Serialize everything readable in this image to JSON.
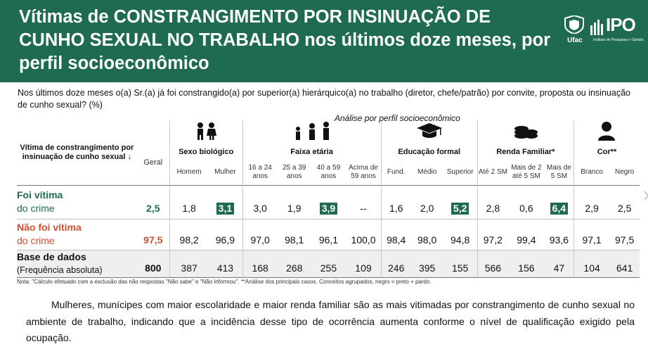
{
  "banner": {
    "title": "Vítimas de CONSTRANGIMENTO POR INSINUAÇÃO DE CUNHO SEXUAL NO TRABALHO nos últimos doze meses, por perfil socioeconômico",
    "logo_ufac": "Ufac",
    "logo_ipo": "IPO",
    "logo_ipo_sub": "Instituto de Pesquisas e Opinião",
    "bg_color": "#1f6b52"
  },
  "question": "Nos últimos doze meses o(a) Sr.(a) já foi constrangido(a) por superior(a) hierárquico(a) no trabalho (diretor, chefe/patrão) por convite, proposta ou insinuação de cunho sexual? (%)",
  "subtitle": "Análise por perfil socioeconômico",
  "table": {
    "row_header": "Vítima de constrangimento por insinuação de cunho sexual ↓",
    "geral_label": "Geral",
    "groups": [
      {
        "title": "Sexo biológico",
        "icon": "people-icon",
        "cols": [
          "Homem",
          "Mulher"
        ]
      },
      {
        "title": "Faixa etária",
        "icon": "age-group-icon",
        "cols": [
          "16 a 24 anos",
          "25 a 39 anos",
          "40 a 59 anos",
          "Acima de 59 anos"
        ]
      },
      {
        "title": "Educação formal",
        "icon": "graduation-cap-icon",
        "cols": [
          "Fund.",
          "Médio",
          "Superior"
        ]
      },
      {
        "title": "Renda Familiar*",
        "icon": "coins-icon",
        "cols": [
          "Até 2 SM",
          "Mais de 2 até 5 SM",
          "Mais de 5 SM"
        ]
      },
      {
        "title": "Cor**",
        "icon": "person-icon",
        "cols": [
          "Branco",
          "Negro"
        ]
      }
    ],
    "rows": [
      {
        "label1": "Foi vítima",
        "label2": "do crime",
        "geral": "2,5",
        "values": [
          "1,8",
          "3,1",
          "3,0",
          "1,9",
          "3,9",
          "--",
          "1,6",
          "2,0",
          "5,2",
          "2,8",
          "0,6",
          "6,4",
          "2,9",
          "2,5"
        ]
      },
      {
        "label1": "Não foi vítima",
        "label2": "do crime",
        "geral": "97,5",
        "values": [
          "98,2",
          "96,9",
          "97,0",
          "98,1",
          "96,1",
          "100,0",
          "98,4",
          "98,0",
          "94,8",
          "97,2",
          "99,4",
          "93,6",
          "97,1",
          "97,5"
        ]
      },
      {
        "label1": "Base de dados",
        "label2": "(Frequência absoluta)",
        "geral": "800",
        "values": [
          "387",
          "413",
          "168",
          "268",
          "255",
          "109",
          "246",
          "395",
          "155",
          "566",
          "156",
          "47",
          "104",
          "641"
        ]
      }
    ],
    "highlight_color": "#1f6b52",
    "victim_color": "#d3502f"
  },
  "note": "Nota: \"Cálculo efetuado com a exclusão das não respostas \"Não sabe\" e \"Não informou\". **Análise dos principais casos. Conceitos agrupados, negro = preto + pardo.",
  "summary": "Mulheres, munícipes com maior escolaridade e maior renda familiar são as mais vitimadas por constrangimento de cunho sexual no ambiente de trabalho, indicando que a incidência desse tipo de ocorrência aumenta conforme o nível de qualificação exigido pela ocupação.",
  "chart_data": {
    "type": "table",
    "title": "Vítimas de CONSTRANGIMENTO POR INSINUAÇÃO DE CUNHO SEXUAL NO TRABALHO nos últimos doze meses, por perfil socioeconômico",
    "categories": [
      "Geral",
      "Homem",
      "Mulher",
      "16 a 24 anos",
      "25 a 39 anos",
      "40 a 59 anos",
      "Acima de 59 anos",
      "Fund.",
      "Médio",
      "Superior",
      "Até 2 SM",
      "Mais de 2 até 5 SM",
      "Mais de 5 SM",
      "Branco",
      "Negro"
    ],
    "series": [
      {
        "name": "Foi vítima do crime",
        "values": [
          2.5,
          1.8,
          3.1,
          3.0,
          1.9,
          3.9,
          null,
          1.6,
          2.0,
          5.2,
          2.8,
          0.6,
          6.4,
          2.9,
          2.5
        ]
      },
      {
        "name": "Não foi vítima do crime",
        "values": [
          97.5,
          98.2,
          96.9,
          97.0,
          98.1,
          96.1,
          100.0,
          98.4,
          98.0,
          94.8,
          97.2,
          99.4,
          93.6,
          97.1,
          97.5
        ]
      },
      {
        "name": "Base de dados (Frequência absoluta)",
        "values": [
          800,
          387,
          413,
          168,
          268,
          255,
          109,
          246,
          395,
          155,
          566,
          156,
          47,
          104,
          641
        ]
      }
    ],
    "highlighted": [
      {
        "series": "Foi vítima do crime",
        "category": "Mulher"
      },
      {
        "series": "Foi vítima do crime",
        "category": "40 a 59 anos"
      },
      {
        "series": "Foi vítima do crime",
        "category": "Superior"
      },
      {
        "series": "Foi vítima do crime",
        "category": "Mais de 5 SM"
      }
    ]
  }
}
